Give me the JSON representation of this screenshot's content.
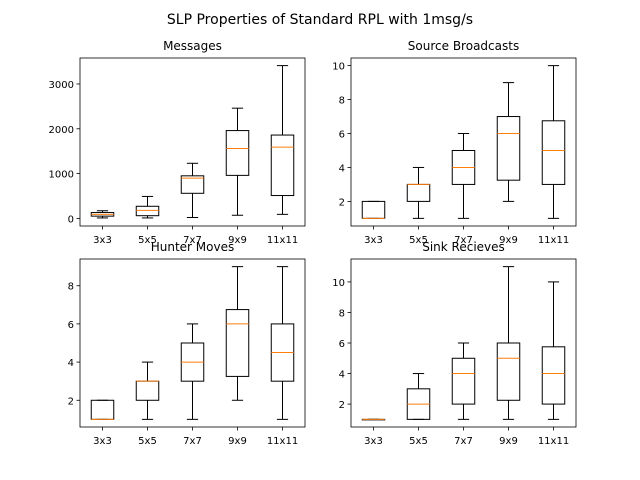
{
  "figure": {
    "suptitle": "SLP Properties of Standard RPL with 1msg/s"
  },
  "colors": {
    "median": "#ff7f0e",
    "box": "#000000",
    "background": "#ffffff"
  },
  "chart_data": [
    {
      "type": "box",
      "title": "Messages",
      "categories": [
        "3x3",
        "5x5",
        "7x7",
        "9x9",
        "11x11"
      ],
      "ylim": [
        -170,
        3580
      ],
      "yticks": [
        0,
        1000,
        2000,
        3000
      ],
      "boxes": [
        {
          "whislo": 10,
          "q1": 50,
          "med": 90,
          "q3": 130,
          "whishi": 170
        },
        {
          "whislo": 10,
          "q1": 60,
          "med": 180,
          "q3": 270,
          "whishi": 490
        },
        {
          "whislo": 20,
          "q1": 560,
          "med": 900,
          "q3": 950,
          "whishi": 1230
        },
        {
          "whislo": 70,
          "q1": 960,
          "med": 1560,
          "q3": 1960,
          "whishi": 2460
        },
        {
          "whislo": 90,
          "q1": 510,
          "med": 1590,
          "q3": 1860,
          "whishi": 3410
        }
      ]
    },
    {
      "type": "box",
      "title": "Source Broadcasts",
      "categories": [
        "3x3",
        "5x5",
        "7x7",
        "9x9",
        "11x11"
      ],
      "ylim": [
        0.55,
        10.45
      ],
      "yticks": [
        2,
        4,
        6,
        8,
        10
      ],
      "boxes": [
        {
          "whislo": 1,
          "q1": 1,
          "med": 1,
          "q3": 2,
          "whishi": 2
        },
        {
          "whislo": 1,
          "q1": 2,
          "med": 3,
          "q3": 3,
          "whishi": 4
        },
        {
          "whislo": 1,
          "q1": 3,
          "med": 4,
          "q3": 5,
          "whishi": 6
        },
        {
          "whislo": 2,
          "q1": 3.25,
          "med": 6,
          "q3": 7,
          "whishi": 9
        },
        {
          "whislo": 1,
          "q1": 3,
          "med": 5,
          "q3": 6.75,
          "whishi": 10
        }
      ]
    },
    {
      "type": "box",
      "title": "Hunter Moves",
      "categories": [
        "3x3",
        "5x5",
        "7x7",
        "9x9",
        "11x11"
      ],
      "ylim": [
        0.6,
        9.4
      ],
      "yticks": [
        2,
        4,
        6,
        8
      ],
      "boxes": [
        {
          "whislo": 1,
          "q1": 1,
          "med": 1,
          "q3": 2,
          "whishi": 2
        },
        {
          "whislo": 1,
          "q1": 2,
          "med": 3,
          "q3": 3,
          "whishi": 4
        },
        {
          "whislo": 1,
          "q1": 3,
          "med": 4,
          "q3": 5,
          "whishi": 6
        },
        {
          "whislo": 2,
          "q1": 3.25,
          "med": 6,
          "q3": 6.75,
          "whishi": 9
        },
        {
          "whislo": 1,
          "q1": 3,
          "med": 4.5,
          "q3": 6,
          "whishi": 9
        }
      ]
    },
    {
      "type": "box",
      "title": "Sink Recieves",
      "categories": [
        "3x3",
        "5x5",
        "7x7",
        "9x9",
        "11x11"
      ],
      "ylim": [
        0.5,
        11.5
      ],
      "yticks": [
        2,
        4,
        6,
        8,
        10
      ],
      "boxes": [
        {
          "whislo": 1,
          "q1": 1,
          "med": 1,
          "q3": 1,
          "whishi": 1
        },
        {
          "whislo": 1,
          "q1": 1,
          "med": 2,
          "q3": 3,
          "whishi": 4
        },
        {
          "whislo": 1,
          "q1": 2,
          "med": 4,
          "q3": 5,
          "whishi": 6
        },
        {
          "whislo": 1,
          "q1": 2.25,
          "med": 5,
          "q3": 6,
          "whishi": 11
        },
        {
          "whislo": 1,
          "q1": 2,
          "med": 4,
          "q3": 5.75,
          "whishi": 10
        }
      ]
    }
  ]
}
